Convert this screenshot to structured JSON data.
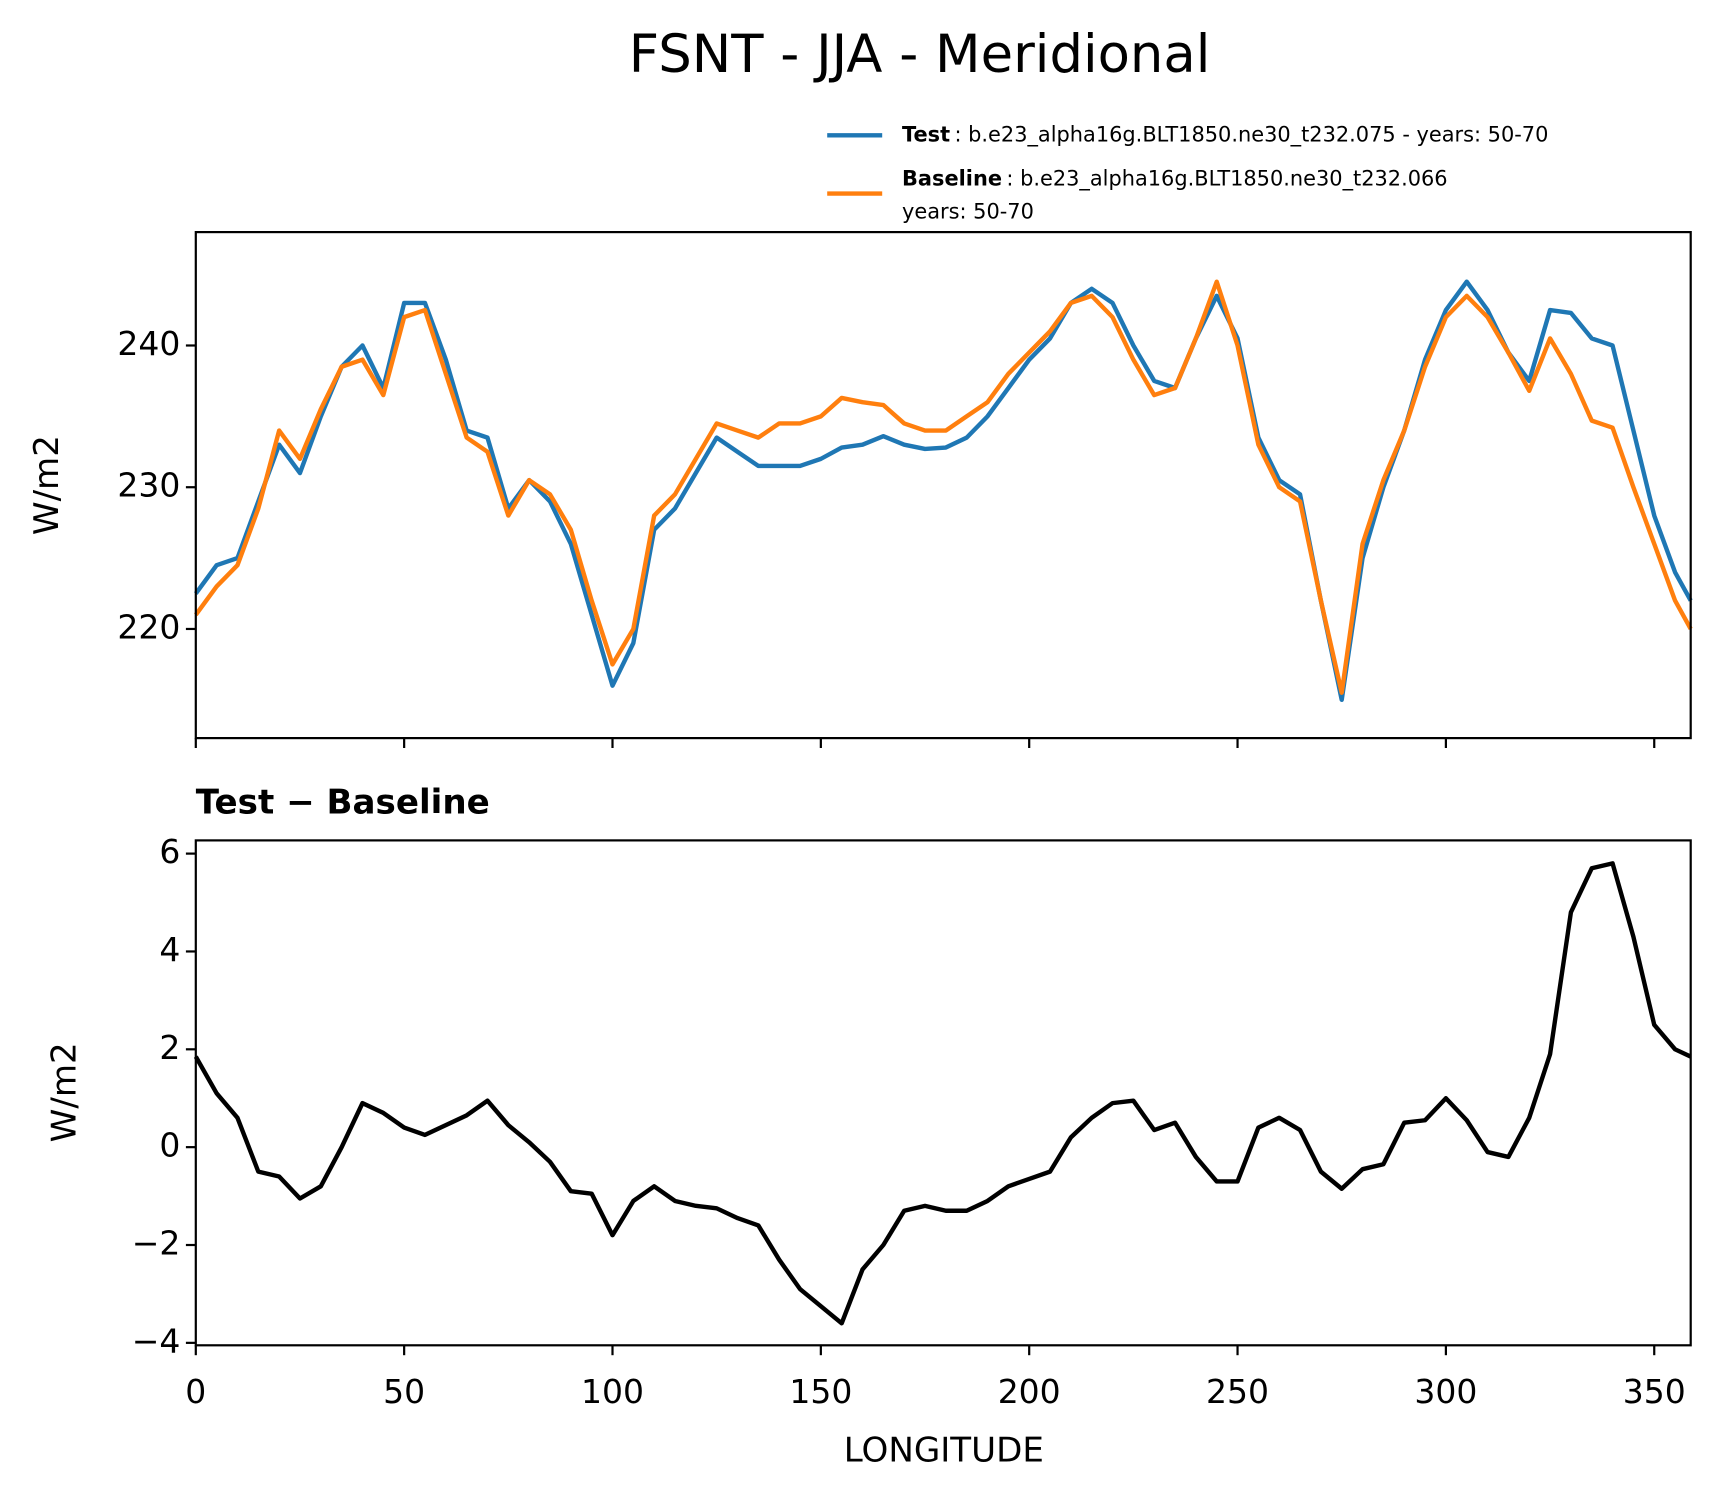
{
  "chart_data": [
    {
      "type": "line",
      "title": "FSNT - JJA - Meridional",
      "ylabel": "W/m2",
      "x": [
        0,
        5,
        10,
        15,
        20,
        25,
        30,
        35,
        40,
        45,
        50,
        55,
        60,
        65,
        70,
        75,
        80,
        85,
        90,
        95,
        100,
        105,
        110,
        115,
        120,
        125,
        130,
        135,
        140,
        145,
        150,
        155,
        160,
        165,
        170,
        175,
        180,
        185,
        190,
        195,
        200,
        205,
        210,
        215,
        220,
        225,
        230,
        235,
        240,
        245,
        250,
        255,
        260,
        265,
        270,
        275,
        280,
        285,
        290,
        295,
        300,
        305,
        310,
        315,
        320,
        325,
        330,
        335,
        340,
        345,
        350,
        355,
        358.75
      ],
      "xlim": [
        0,
        358.75
      ],
      "ylim": [
        212.3,
        248.0
      ],
      "yticks": [
        220,
        230,
        240
      ],
      "series": [
        {
          "name": "Test",
          "description": [
            ": b.e23_alpha16g.BLT1850.ne30_t232.075 - years: 50-70"
          ],
          "color": "#1f77b4",
          "values": [
            222.5,
            224.5,
            225,
            229,
            233,
            231,
            235,
            238.5,
            240,
            237,
            243,
            243,
            239,
            234,
            233.5,
            228.5,
            230.5,
            229,
            226,
            221,
            216,
            219,
            227,
            228.5,
            231,
            233.5,
            232.5,
            231.5,
            231.5,
            231.5,
            232,
            232.8,
            233,
            233.6,
            233,
            232.7,
            232.8,
            233.5,
            235,
            237,
            239,
            240.5,
            243,
            244,
            243,
            240,
            237.5,
            237,
            240.5,
            243.5,
            240.5,
            233.5,
            230.5,
            229.5,
            222,
            215,
            225,
            230,
            234,
            239,
            242.5,
            244.5,
            242.5,
            239.5,
            237.5,
            242.5,
            242.3,
            240.5,
            240,
            234,
            228,
            224,
            222
          ]
        },
        {
          "name": "Baseline",
          "description": [
            ": b.e23_alpha16g.BLT1850.ne30_t232.066",
            "years: 50-70"
          ],
          "color": "#ff7f0e",
          "values": [
            221,
            223,
            224.5,
            228.5,
            234,
            232,
            235.5,
            238.5,
            239,
            236.5,
            242,
            242.5,
            238,
            233.5,
            232.5,
            228,
            230.5,
            229.5,
            227,
            222,
            217.5,
            220,
            228,
            229.5,
            232,
            234.5,
            234,
            233.5,
            234.5,
            234.5,
            235,
            236.3,
            236,
            235.8,
            234.5,
            234,
            234,
            235,
            236,
            238,
            239.5,
            241,
            243,
            243.5,
            242,
            239,
            236.5,
            237,
            240.5,
            244.5,
            240,
            233,
            230,
            229,
            222,
            215.5,
            226,
            230.5,
            234,
            238.5,
            242,
            243.5,
            242,
            239.5,
            236.8,
            240.5,
            238,
            234.7,
            234.2,
            230,
            226,
            222,
            220
          ]
        }
      ]
    },
    {
      "type": "line",
      "title": "Test − Baseline",
      "xlabel": "LONGITUDE",
      "ylabel": "W/m2",
      "x": [
        0,
        5,
        10,
        15,
        20,
        25,
        30,
        35,
        40,
        45,
        50,
        55,
        60,
        65,
        70,
        75,
        80,
        85,
        90,
        95,
        100,
        105,
        110,
        115,
        120,
        125,
        130,
        135,
        140,
        145,
        150,
        155,
        160,
        165,
        170,
        175,
        180,
        185,
        190,
        195,
        200,
        205,
        210,
        215,
        220,
        225,
        230,
        235,
        240,
        245,
        250,
        255,
        260,
        265,
        270,
        275,
        280,
        285,
        290,
        295,
        300,
        305,
        310,
        315,
        320,
        325,
        330,
        335,
        340,
        345,
        350,
        355,
        358.75
      ],
      "xlim": [
        0,
        358.75
      ],
      "xticks": [
        0,
        50,
        100,
        150,
        200,
        250,
        300,
        350
      ],
      "ylim": [
        -4.05,
        6.27
      ],
      "yticks": [
        {
          "value": -4,
          "label": "−4"
        },
        {
          "value": -2,
          "label": "−2"
        },
        0,
        2,
        4,
        6
      ],
      "series": [
        {
          "color": "#000000",
          "values": [
            1.85,
            1.1,
            0.6,
            -0.5,
            -0.6,
            -1.05,
            -0.8,
            0.0,
            0.9,
            0.7,
            0.4,
            0.25,
            0.45,
            0.65,
            0.95,
            0.45,
            0.1,
            -0.3,
            -0.9,
            -0.95,
            -1.8,
            -1.1,
            -0.8,
            -1.1,
            -1.2,
            -1.25,
            -1.45,
            -1.6,
            -2.3,
            -2.9,
            -3.25,
            -3.6,
            -2.5,
            -2.0,
            -1.3,
            -1.2,
            -1.3,
            -1.3,
            -1.1,
            -0.8,
            -0.65,
            -0.5,
            0.2,
            0.6,
            0.9,
            0.95,
            0.35,
            0.5,
            -0.2,
            -0.7,
            -0.7,
            0.4,
            0.6,
            0.35,
            -0.5,
            -0.85,
            -0.45,
            -0.35,
            0.5,
            0.55,
            1.0,
            0.55,
            -0.1,
            -0.2,
            0.6,
            1.9,
            4.8,
            5.7,
            5.8,
            4.3,
            2.5,
            2.0,
            1.85
          ]
        }
      ]
    }
  ]
}
